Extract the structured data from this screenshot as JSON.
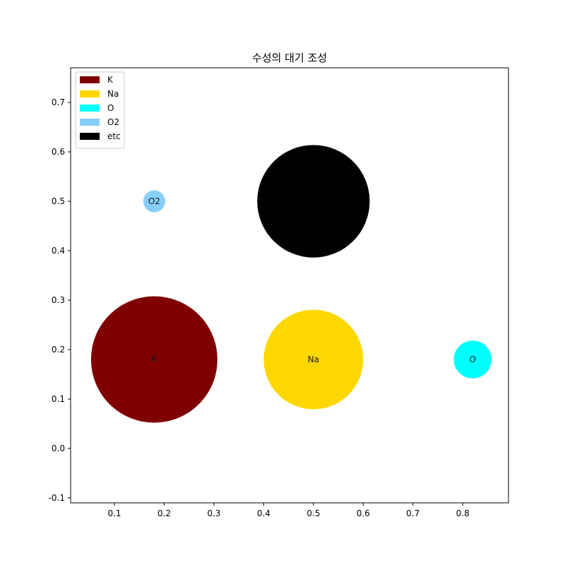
{
  "chart_data": {
    "type": "scatter",
    "title": "수성의 대기 조성",
    "xlabel": "",
    "ylabel": "",
    "xlim": [
      0.012,
      0.892
    ],
    "ylim": [
      -0.11,
      0.77
    ],
    "xticks": [
      0.1,
      0.2,
      0.3,
      0.4,
      0.5,
      0.6,
      0.7,
      0.8
    ],
    "yticks": [
      -0.1,
      0.0,
      0.1,
      0.2,
      0.3,
      0.4,
      0.5,
      0.6,
      0.7
    ],
    "xtick_labels": [
      "0.1",
      "0.2",
      "0.3",
      "0.4",
      "0.5",
      "0.6",
      "0.7",
      "0.8"
    ],
    "ytick_labels": [
      "-0.1",
      "0.0",
      "0.1",
      "0.2",
      "0.3",
      "0.4",
      "0.5",
      "0.6",
      "0.7"
    ],
    "grid": false,
    "legend_position": "top-left",
    "points": [
      {
        "name": "K",
        "label": "K",
        "x": 0.18,
        "y": 0.18,
        "r": 0.127,
        "color": "#800000"
      },
      {
        "name": "Na",
        "label": "Na",
        "x": 0.5,
        "y": 0.18,
        "r": 0.1,
        "color": "#FFD700"
      },
      {
        "name": "O",
        "label": "O",
        "x": 0.82,
        "y": 0.18,
        "r": 0.038,
        "color": "#00FFFF"
      },
      {
        "name": "O2",
        "label": "O2",
        "x": 0.18,
        "y": 0.5,
        "r": 0.022,
        "color": "#87CEFA"
      },
      {
        "name": "etc",
        "label": "",
        "x": 0.5,
        "y": 0.5,
        "r": 0.113,
        "color": "#000000"
      }
    ],
    "legend": [
      "K",
      "Na",
      "O",
      "O2",
      "etc"
    ]
  }
}
